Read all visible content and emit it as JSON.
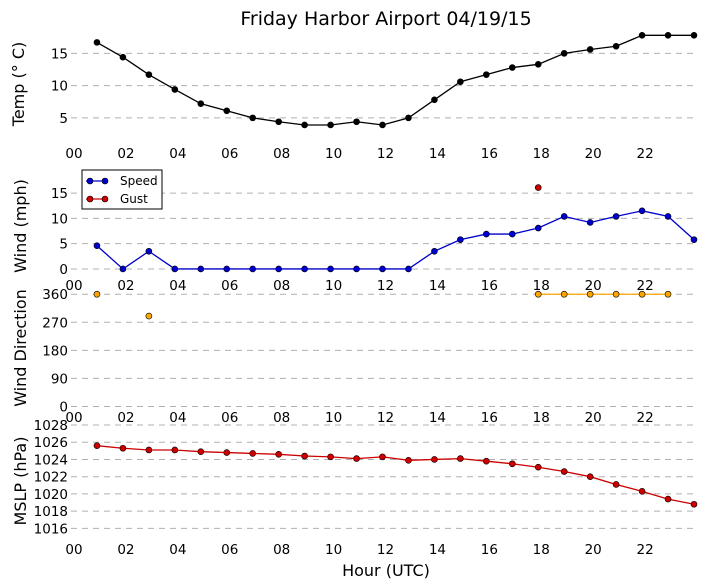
{
  "chart_data": [
    {
      "type": "line",
      "title": "Friday Harbor Airport 04/19/15",
      "ylabel": "Temp ($^\\circ$C)",
      "ylabel_display": "Temp (° C)",
      "xlim": [
        0,
        24
      ],
      "ylim": [
        2.5,
        18
      ],
      "yticks": [
        5,
        10,
        15
      ],
      "xticks": [
        0,
        2,
        4,
        6,
        8,
        10,
        12,
        14,
        16,
        18,
        20,
        22
      ],
      "xtick_labels": [
        "00",
        "02",
        "04",
        "06",
        "08",
        "10",
        "12",
        "14",
        "16",
        "18",
        "20",
        "22"
      ],
      "grid": "horizontal-dashed",
      "series": [
        {
          "color": "#000000",
          "x": [
            1,
            2,
            3,
            4,
            5,
            6,
            7,
            8,
            9,
            10,
            11,
            12,
            13,
            14,
            15,
            16,
            17,
            18,
            19,
            20,
            21,
            22,
            23,
            24
          ],
          "y": [
            16.7,
            14.4,
            11.7,
            9.4,
            7.2,
            6.1,
            5.0,
            4.4,
            3.9,
            3.9,
            4.4,
            3.9,
            5.0,
            7.8,
            10.6,
            11.7,
            12.8,
            13.3,
            15.0,
            15.6,
            16.1,
            17.8,
            17.8,
            17.8
          ]
        }
      ]
    },
    {
      "type": "line",
      "ylabel": "Wind (mph)",
      "xlim": [
        0,
        24
      ],
      "ylim": [
        -1,
        18
      ],
      "yticks": [
        0,
        5,
        10,
        15
      ],
      "xticks": [
        0,
        2,
        4,
        6,
        8,
        10,
        12,
        14,
        16,
        18,
        20,
        22
      ],
      "xtick_labels": [
        "00",
        "02",
        "04",
        "06",
        "08",
        "10",
        "12",
        "14",
        "16",
        "18",
        "20",
        "22"
      ],
      "grid": "horizontal-dashed",
      "legend": "top-left",
      "series": [
        {
          "name": "Speed",
          "color": "#0000cc",
          "x": [
            1,
            2,
            3,
            4,
            5,
            6,
            7,
            8,
            9,
            10,
            11,
            12,
            13,
            14,
            15,
            16,
            17,
            18,
            19,
            20,
            21,
            22,
            23,
            24
          ],
          "y": [
            4.6,
            0,
            3.5,
            0,
            0,
            0,
            0,
            0,
            0,
            0,
            0,
            0,
            0,
            3.5,
            5.8,
            6.9,
            6.9,
            8.1,
            10.4,
            9.2,
            10.4,
            11.5,
            10.4,
            5.8
          ]
        },
        {
          "name": "Gust",
          "color": "#cc0000",
          "x": [
            18
          ],
          "y": [
            16.1
          ]
        }
      ]
    },
    {
      "type": "scatter",
      "ylabel": "Wind Direction",
      "xlim": [
        0,
        24
      ],
      "ylim": [
        -5,
        380
      ],
      "yticks": [
        0,
        90,
        180,
        270,
        360
      ],
      "xticks": [
        0,
        2,
        4,
        6,
        8,
        10,
        12,
        14,
        16,
        18,
        20,
        22
      ],
      "xtick_labels": [
        "00",
        "02",
        "04",
        "06",
        "08",
        "10",
        "12",
        "14",
        "16",
        "18",
        "20",
        "22"
      ],
      "grid": "horizontal-dashed",
      "series": [
        {
          "color": "#ffa500",
          "x": [
            1,
            3,
            18,
            19,
            20,
            21,
            22,
            23
          ],
          "y": [
            360,
            290,
            360,
            360,
            360,
            360,
            360,
            360
          ],
          "connected_from_index": 2
        }
      ]
    },
    {
      "type": "line",
      "ylabel": "MSLP (hPa)",
      "xlabel": "Hour (UTC)",
      "xlim": [
        0,
        24
      ],
      "ylim": [
        1015,
        1028
      ],
      "yticks": [
        1016,
        1018,
        1020,
        1022,
        1024,
        1026,
        1028
      ],
      "xticks": [
        0,
        2,
        4,
        6,
        8,
        10,
        12,
        14,
        16,
        18,
        20,
        22
      ],
      "xtick_labels": [
        "00",
        "02",
        "04",
        "06",
        "08",
        "10",
        "12",
        "14",
        "16",
        "18",
        "20",
        "22"
      ],
      "grid": "horizontal-dashed",
      "series": [
        {
          "color": "#cc0000",
          "x": [
            1,
            2,
            3,
            4,
            5,
            6,
            7,
            8,
            9,
            10,
            11,
            12,
            13,
            14,
            15,
            16,
            17,
            18,
            19,
            20,
            21,
            22,
            23,
            24
          ],
          "y": [
            1025.6,
            1025.3,
            1025.1,
            1025.1,
            1024.9,
            1024.8,
            1024.7,
            1024.6,
            1024.4,
            1024.3,
            1024.1,
            1024.3,
            1023.9,
            1024.0,
            1024.1,
            1023.8,
            1023.5,
            1023.1,
            1022.6,
            1022.0,
            1021.1,
            1020.3,
            1019.4,
            1018.8
          ]
        }
      ]
    }
  ],
  "colors": {
    "grid": "#b0b0b0",
    "marker_edge": "#000000"
  }
}
